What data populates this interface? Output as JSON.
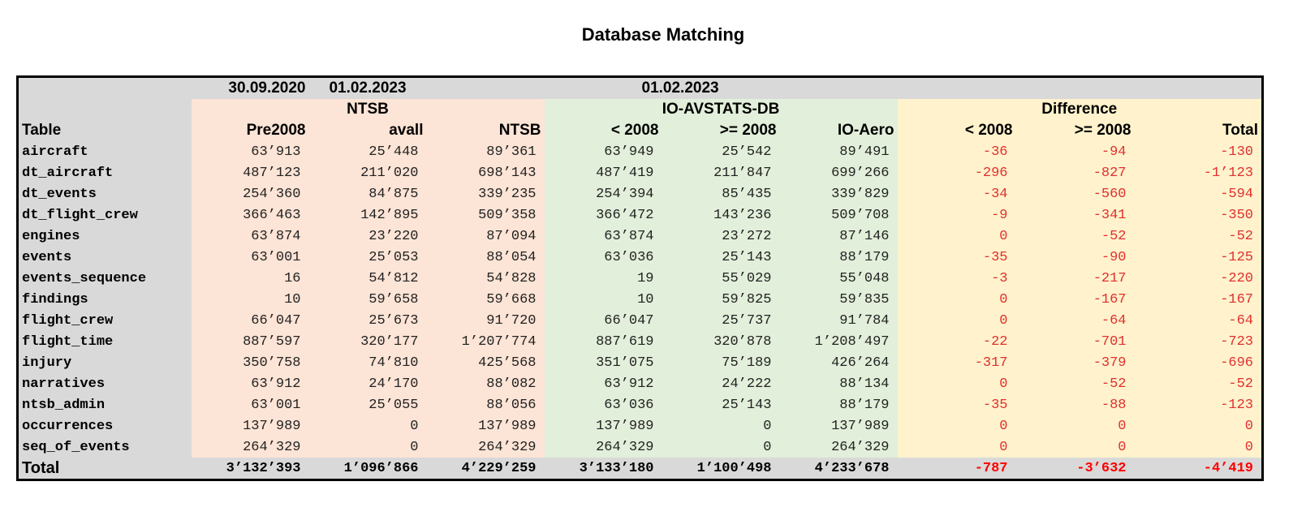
{
  "title": "Database Matching",
  "header": {
    "date_pre2008": "30.09.2020",
    "date_avall": "01.02.2023",
    "date_ioaero": "01.02.2023",
    "group_ntsb": "NTSB",
    "group_io": "IO-AVSTATS-DB",
    "group_diff": "Difference",
    "columns": [
      "Table",
      "Pre2008",
      "avall",
      "NTSB",
      "< 2008",
      ">= 2008",
      "IO-Aero",
      "< 2008",
      ">= 2008",
      "Total"
    ]
  },
  "rows": [
    [
      "aircraft",
      "63’913",
      "25’448",
      "89’361",
      "63’949",
      "25’542",
      "89’491",
      "-36",
      "-94",
      "-130"
    ],
    [
      "dt_aircraft",
      "487’123",
      "211’020",
      "698’143",
      "487’419",
      "211’847",
      "699’266",
      "-296",
      "-827",
      "-1’123"
    ],
    [
      "dt_events",
      "254’360",
      "84’875",
      "339’235",
      "254’394",
      "85’435",
      "339’829",
      "-34",
      "-560",
      "-594"
    ],
    [
      "dt_flight_crew",
      "366’463",
      "142’895",
      "509’358",
      "366’472",
      "143’236",
      "509’708",
      "-9",
      "-341",
      "-350"
    ],
    [
      "engines",
      "63’874",
      "23’220",
      "87’094",
      "63’874",
      "23’272",
      "87’146",
      "0",
      "-52",
      "-52"
    ],
    [
      "events",
      "63’001",
      "25’053",
      "88’054",
      "63’036",
      "25’143",
      "88’179",
      "-35",
      "-90",
      "-125"
    ],
    [
      "events_sequence",
      "16",
      "54’812",
      "54’828",
      "19",
      "55’029",
      "55’048",
      "-3",
      "-217",
      "-220"
    ],
    [
      "findings",
      "10",
      "59’658",
      "59’668",
      "10",
      "59’825",
      "59’835",
      "0",
      "-167",
      "-167"
    ],
    [
      "flight_crew",
      "66’047",
      "25’673",
      "91’720",
      "66’047",
      "25’737",
      "91’784",
      "0",
      "-64",
      "-64"
    ],
    [
      "flight_time",
      "887’597",
      "320’177",
      "1’207’774",
      "887’619",
      "320’878",
      "1’208’497",
      "-22",
      "-701",
      "-723"
    ],
    [
      "injury",
      "350’758",
      "74’810",
      "425’568",
      "351’075",
      "75’189",
      "426’264",
      "-317",
      "-379",
      "-696"
    ],
    [
      "narratives",
      "63’912",
      "24’170",
      "88’082",
      "63’912",
      "24’222",
      "88’134",
      "0",
      "-52",
      "-52"
    ],
    [
      "ntsb_admin",
      "63’001",
      "25’055",
      "88’056",
      "63’036",
      "25’143",
      "88’179",
      "-35",
      "-88",
      "-123"
    ],
    [
      "occurrences",
      "137’989",
      "0",
      "137’989",
      "137’989",
      "0",
      "137’989",
      "0",
      "0",
      "0"
    ],
    [
      "seq_of_events",
      "264’329",
      "0",
      "264’329",
      "264’329",
      "0",
      "264’329",
      "0",
      "0",
      "0"
    ]
  ],
  "total": [
    "Total",
    "3’132’393",
    "1’096’866",
    "4’229’259",
    "3’133’180",
    "1’100’498",
    "4’233’678",
    "-787",
    "-3’632",
    "-4’419"
  ],
  "colors": {
    "ntsb_bg": "#fce4d6",
    "io_bg": "#e2efda",
    "diff_bg": "#fff2cc",
    "grey_bg": "#d9d9d9",
    "negative": "#e03030"
  }
}
